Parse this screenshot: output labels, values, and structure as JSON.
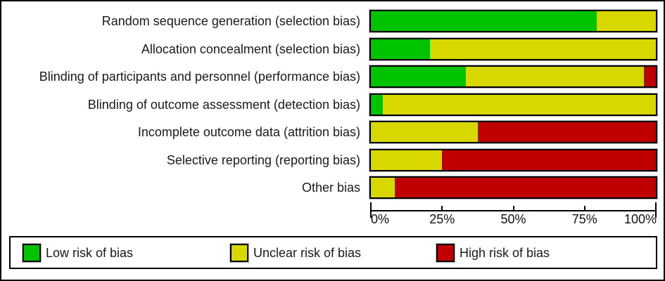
{
  "chart_data": {
    "type": "bar",
    "orientation": "horizontal",
    "stacked": true,
    "unit": "%",
    "categories": [
      "Random sequence generation (selection bias)",
      "Allocation concealment (selection bias)",
      "Blinding of participants and personnel (performance bias)",
      "Blinding of outcome assessment (detection bias)",
      "Incomplete outcome data (attrition bias)",
      "Selective reporting (reporting bias)",
      "Other bias"
    ],
    "series": [
      {
        "key": "low",
        "name": "Low risk of bias",
        "color": "#00C300",
        "values": [
          79.17,
          20.83,
          33.33,
          4.17,
          0,
          0,
          0
        ]
      },
      {
        "key": "unclear",
        "name": "Unclear risk of bias",
        "color": "#D8D800",
        "values": [
          20.83,
          79.17,
          62.5,
          95.83,
          37.5,
          25.0,
          8.33
        ]
      },
      {
        "key": "high",
        "name": "High risk of bias",
        "color": "#C00000",
        "values": [
          0,
          0,
          4.17,
          0,
          62.5,
          75.0,
          91.67
        ]
      }
    ],
    "xlabel": "",
    "ylabel": "",
    "xlim": [
      0,
      100
    ],
    "x_ticks": [
      {
        "value": 0,
        "label": "0%"
      },
      {
        "value": 25,
        "label": "25%"
      },
      {
        "value": 50,
        "label": "50%"
      },
      {
        "value": 75,
        "label": "75%"
      },
      {
        "value": 100,
        "label": "100%"
      }
    ],
    "grid": false,
    "legend_position": "bottom"
  },
  "layout_values": {
    "row_tops": [
      12,
      52,
      91,
      131,
      170,
      210,
      249
    ],
    "legend_item_lefts": [
      17,
      312,
      605
    ]
  }
}
